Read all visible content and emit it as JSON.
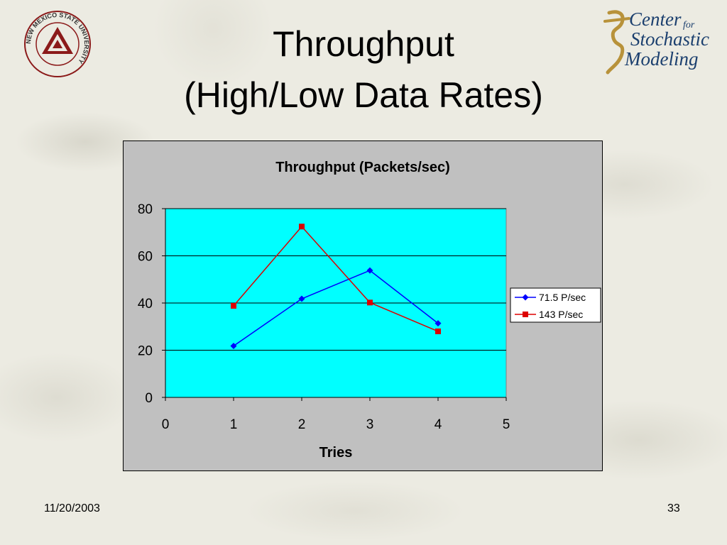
{
  "slide": {
    "title_line1": "Throughput",
    "title_line2": "(High/Low Data Rates)",
    "date": "11/20/2003",
    "page_number": "33"
  },
  "logos": {
    "nmsu_text": "NEW MEXICO STATE UNIVERSITY",
    "csm_line1": "Center",
    "csm_for": "for",
    "csm_line2": "Stochastic",
    "csm_line3": "Modeling"
  },
  "colors": {
    "plot_area": "#00ffff",
    "chart_background": "#c0c0c0",
    "series_1": "#0000ff",
    "series_2": "#dd0000"
  },
  "chart_data": {
    "type": "line",
    "title": "Throughput (Packets/sec)",
    "xlabel": "Tries",
    "ylabel": "",
    "xlim": [
      0,
      5
    ],
    "ylim": [
      0,
      80
    ],
    "x_ticks": [
      "0",
      "1",
      "2",
      "3",
      "4",
      "5"
    ],
    "y_ticks": [
      "0",
      "20",
      "40",
      "60",
      "80"
    ],
    "grid": "horizontal",
    "legend_position": "right",
    "series": [
      {
        "name": "71.5 P/sec",
        "marker": "diamond",
        "x": [
          1,
          2,
          3,
          4
        ],
        "y": [
          21.8,
          41.8,
          53.8,
          31.4
        ]
      },
      {
        "name": "143 P/sec",
        "marker": "square",
        "x": [
          1,
          2,
          3,
          4
        ],
        "y": [
          38.8,
          72.4,
          40.2,
          28.0
        ]
      }
    ]
  }
}
